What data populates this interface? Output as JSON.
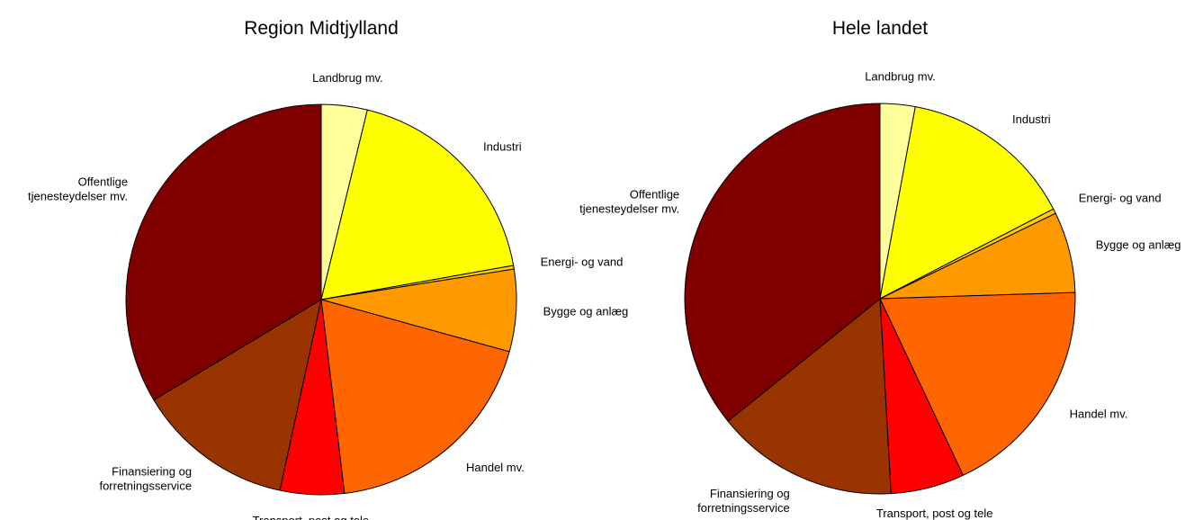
{
  "chart_data": [
    {
      "type": "pie",
      "title": "Region Midtjylland",
      "categories": [
        "Landbrug mv.",
        "Industri",
        "Energi- og vand",
        "Bygge og anlæg",
        "Handel mv.",
        "Transport, post og tele",
        "Finansiering og\nforretningsservice",
        "Offentlige\ntjenesteydelser mv."
      ],
      "values": [
        3.8,
        18.4,
        0.3,
        6.8,
        18.8,
        5.3,
        13.0,
        33.6
      ],
      "colors": [
        "#ffff99",
        "#ffff00",
        "#ffcc00",
        "#ff9900",
        "#ff6600",
        "#ff0000",
        "#993300",
        "#800000"
      ]
    },
    {
      "type": "pie",
      "title": "Hele landet",
      "categories": [
        "Landbrug mv.",
        "Industri",
        "Energi- og vand",
        "Bygge og anlæg",
        "Handel mv.",
        "Transport, post og tele",
        "Finansiering og\nforretningsservice",
        "Offentlige\ntjenesteydelser mv."
      ],
      "values": [
        2.9,
        14.5,
        0.4,
        6.7,
        18.5,
        6.1,
        15.1,
        35.8
      ],
      "colors": [
        "#ffff99",
        "#ffff00",
        "#ffcc00",
        "#ff9900",
        "#ff6600",
        "#ff0000",
        "#993300",
        "#800000"
      ]
    }
  ]
}
